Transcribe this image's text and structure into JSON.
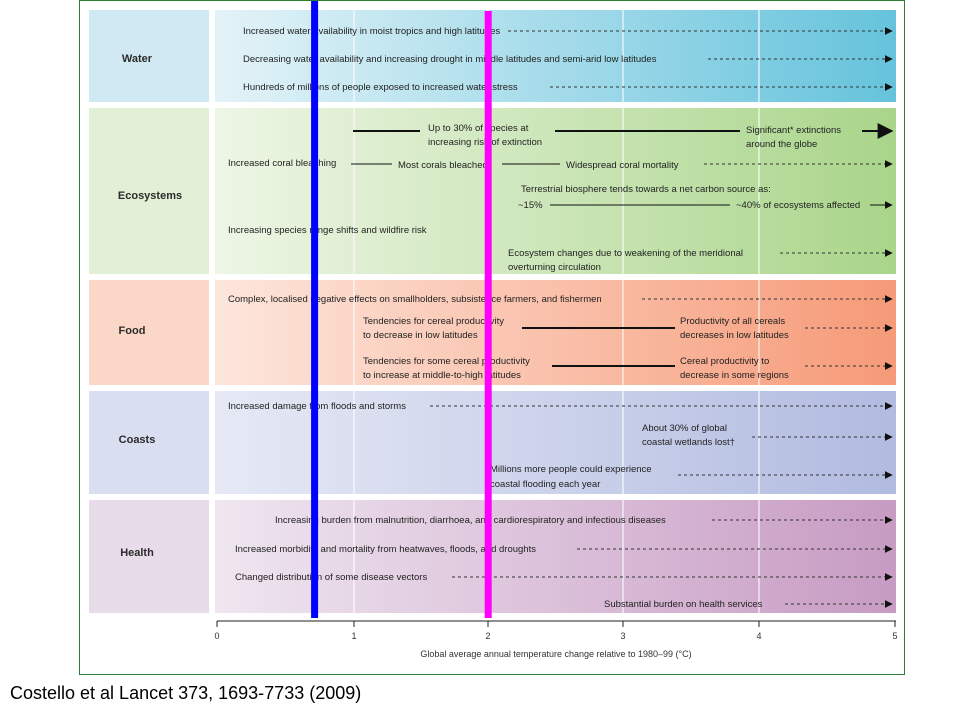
{
  "categories": [
    {
      "key": "water",
      "label": "Water",
      "bg": "#d0e9f2",
      "grad_from": "#e4f3f8",
      "grad_to": "#65c3dc"
    },
    {
      "key": "ecosystems",
      "label": "Ecosystems",
      "bg": "#e2f0d6",
      "grad_from": "#eef6e6",
      "grad_to": "#a9d58a"
    },
    {
      "key": "food",
      "label": "Food",
      "bg": "#fbd7c8",
      "grad_from": "#fde6dc",
      "grad_to": "#f69a78"
    },
    {
      "key": "coasts",
      "label": "Coasts",
      "bg": "#d9def0",
      "grad_from": "#e6e9f5",
      "grad_to": "#b1bbe0"
    },
    {
      "key": "health",
      "label": "Health",
      "bg": "#e8dcea",
      "grad_from": "#efe6f0",
      "grad_to": "#c79bc3"
    }
  ],
  "impacts": {
    "water": [
      "Increased water availability in moist tropics and high latitudes",
      "Decreasing water availability and increasing drought in middle latitudes and semi-arid low latitudes",
      "Hundreds of millions of people exposed to increased water stress"
    ],
    "ecosystems": {
      "species_risk": [
        "Up to 30% of species at",
        "increasing risk of extinction"
      ],
      "significant_extinctions": [
        "Significant* extinctions",
        "around the globe"
      ],
      "coral_bleaching": "Increased coral bleaching",
      "most_corals": "Most corals bleached",
      "coral_mortality": "Widespread coral mortality",
      "biosphere": "Terrestrial biosphere tends towards a net carbon source as:",
      "biosphere_15": "~15%",
      "biosphere_40": "~40% of ecosystems affected",
      "range_shifts": "Increasing species range shifts and wildfire risk",
      "meridional": [
        "Ecosystem changes due to weakening of the meridional",
        "overturning circulation"
      ]
    },
    "food": {
      "smallholders": "Complex, localised negative effects on smallholders, subsistence farmers, and fishermen",
      "cereal_low": [
        "Tendencies for cereal productivity",
        "to decrease in low latitudes"
      ],
      "cereal_low_all": [
        "Productivity of all cereals",
        "decreases in low latitudes"
      ],
      "cereal_mid": [
        "Tendencies for some cereal productivity",
        "to increase at middle-to-high latitudes"
      ],
      "cereal_decrease": [
        "Cereal productivity to",
        "decrease in some regions"
      ]
    },
    "coasts": {
      "floods": "Increased damage from floods and storms",
      "wetlands": [
        "About 30% of global",
        "coastal wetlands lost†"
      ],
      "flooding_people": [
        "Millions more people could experience",
        "coastal flooding each year"
      ]
    },
    "health": [
      "Increasing burden from malnutrition, diarrhoea, and cardiorespiratory and infectious diseases",
      "Increased morbidity and mortality from heatwaves, floods, and droughts",
      "Changed distribution of some disease vectors",
      "Substantial burden on health services"
    ]
  },
  "axis": {
    "ticks": [
      "0",
      "1",
      "2",
      "3",
      "4",
      "5"
    ],
    "label": "Global average annual temperature change relative to 1980–99 (°C)"
  },
  "markers": [
    {
      "color": "#0000ff",
      "value": 0.72
    },
    {
      "color": "#ff00ff",
      "value": 2.0
    }
  ],
  "citation": "Costello et al Lancet 373, 1693-7733 (2009)"
}
